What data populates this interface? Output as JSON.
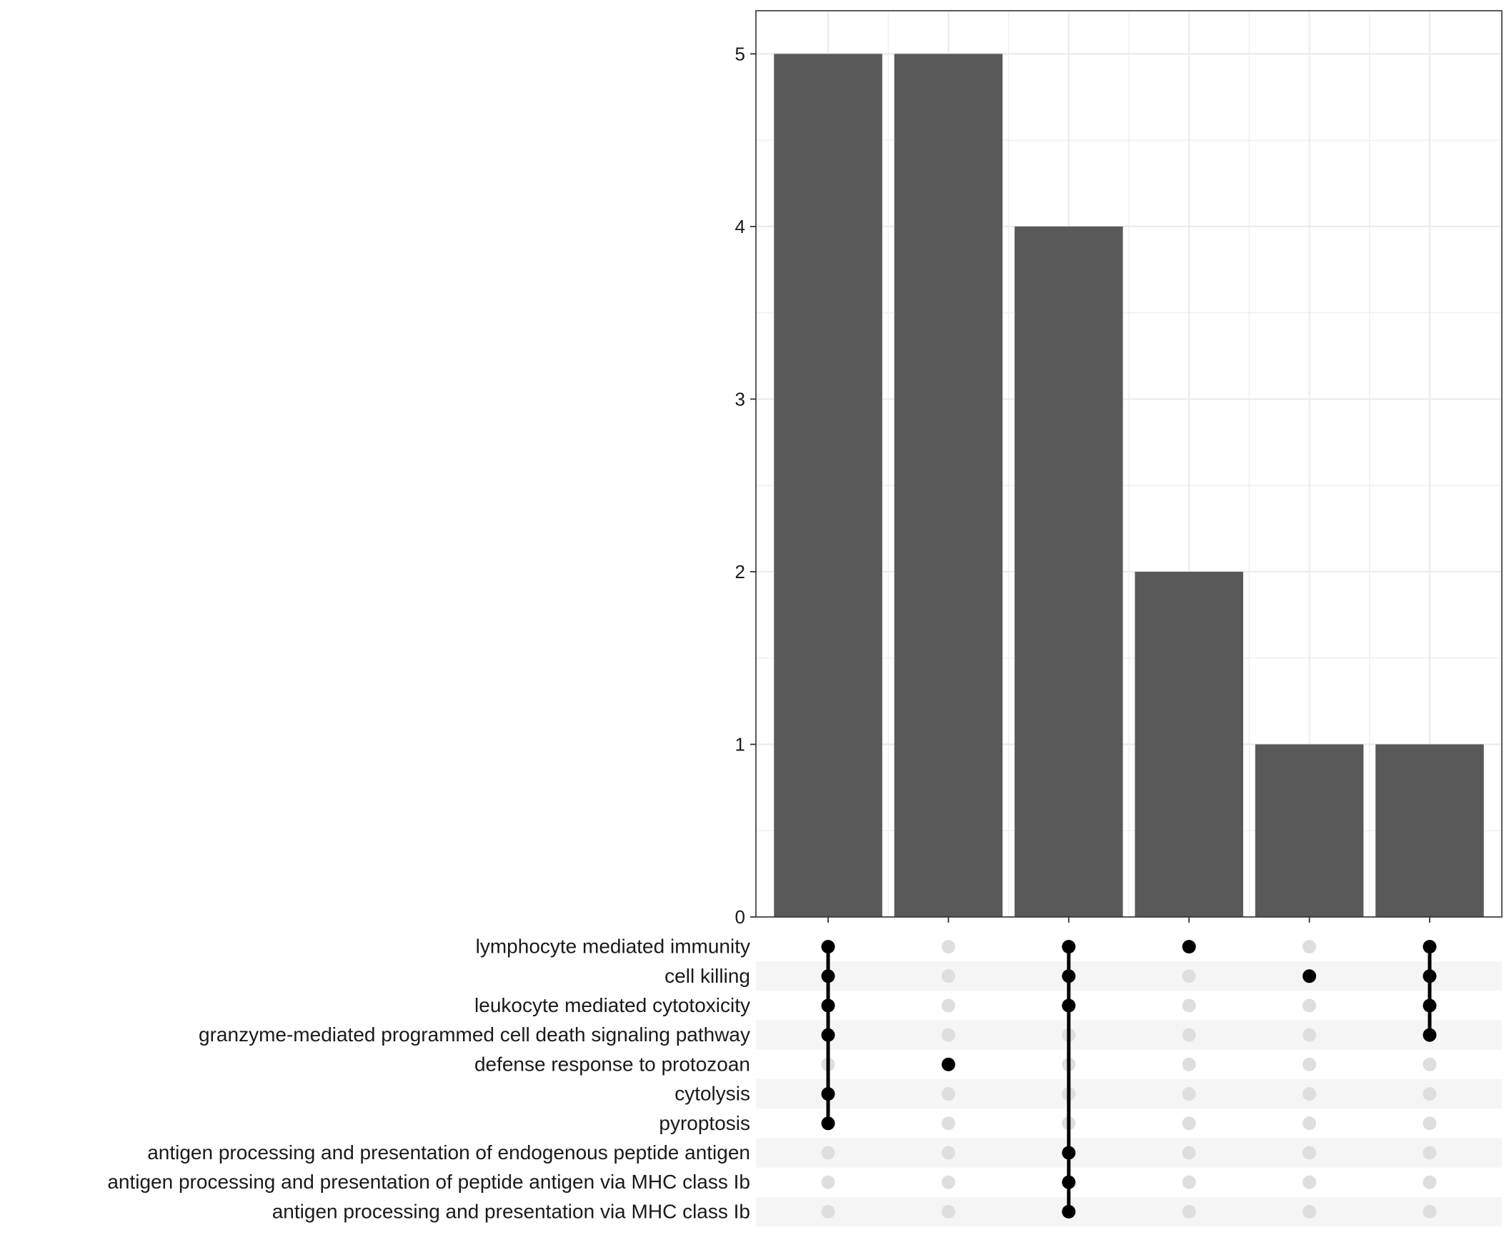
{
  "chart_data": {
    "type": "upset",
    "title": "",
    "xlabel": "",
    "ylabel": "",
    "ylim": [
      0,
      5.25
    ],
    "y_ticks": [
      0,
      1,
      2,
      3,
      4,
      5
    ],
    "grid": true,
    "sets": [
      "lymphocyte mediated immunity",
      "cell killing",
      "leukocyte mediated cytotoxicity",
      "granzyme-mediated programmed cell death signaling pathway",
      "defense response to protozoan",
      "cytolysis",
      "pyroptosis",
      "antigen processing and presentation of endogenous peptide antigen",
      "antigen processing and presentation of peptide antigen via MHC class Ib",
      "antigen processing and presentation via MHC class Ib"
    ],
    "intersections": [
      {
        "value": 5,
        "members": [
          0,
          1,
          2,
          3,
          5,
          6
        ]
      },
      {
        "value": 5,
        "members": [
          4
        ]
      },
      {
        "value": 4,
        "members": [
          0,
          1,
          2,
          7,
          8,
          9
        ]
      },
      {
        "value": 2,
        "members": [
          0
        ]
      },
      {
        "value": 1,
        "members": [
          1
        ]
      },
      {
        "value": 1,
        "members": [
          0,
          1,
          2,
          3
        ]
      }
    ],
    "colors": {
      "bar": "#595959",
      "dot_active": "#000000",
      "dot_inactive": "#dedede",
      "grid": "#ebebeb",
      "stripe": "#f5f5f5",
      "frame": "#333333"
    }
  }
}
